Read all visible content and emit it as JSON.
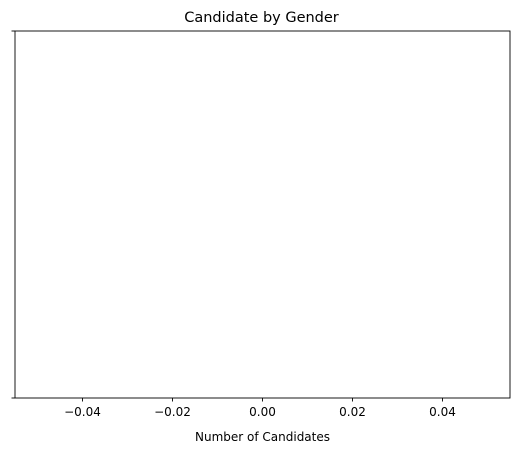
{
  "chart_data": {
    "type": "bar",
    "orientation": "horizontal",
    "title": "Candidate by Gender",
    "xlabel": "Number of Candidates",
    "ylabel": "",
    "categories": [],
    "values": [],
    "xlim": [
      -0.055,
      0.055
    ],
    "xticks": [
      -0.04,
      -0.02,
      0.0,
      0.02,
      0.04
    ],
    "xtick_labels": [
      "−0.04",
      "−0.02",
      "0.00",
      "0.02",
      "0.04"
    ],
    "grid": false,
    "legend": "none",
    "colors": {
      "axis": "#000000",
      "background": "#ffffff"
    }
  }
}
